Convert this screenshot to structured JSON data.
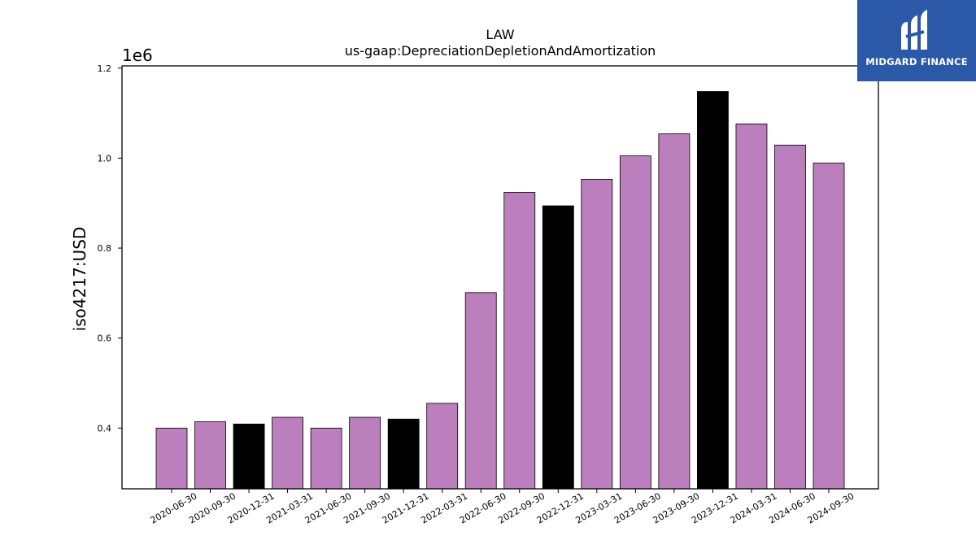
{
  "chart_data": {
    "type": "bar",
    "title": "LAW",
    "subtitle": "us-gaap:DepreciationDepletionAndAmortization",
    "ylabel": "iso4217:USD",
    "xlabel": "",
    "y_offset_label": "1e6",
    "ylim": [
      0.265,
      1.205
    ],
    "yticks": [
      0.4,
      0.6,
      0.8,
      1.0,
      1.2
    ],
    "ytick_labels": [
      "0.4",
      "0.6",
      "0.8",
      "1.0",
      "1.2"
    ],
    "categories": [
      "2020-06-30",
      "2020-09-30",
      "2020-12-31",
      "2021-03-31",
      "2021-06-30",
      "2021-09-30",
      "2021-12-31",
      "2022-03-31",
      "2022-06-30",
      "2022-09-30",
      "2022-12-31",
      "2023-03-31",
      "2023-06-30",
      "2023-09-30",
      "2023-12-31",
      "2024-03-31",
      "2024-06-30",
      "2024-09-30"
    ],
    "values": [
      0.4,
      0.414,
      0.409,
      0.424,
      0.4,
      0.424,
      0.42,
      0.455,
      0.701,
      0.924,
      0.894,
      0.953,
      1.005,
      1.054,
      1.148,
      1.076,
      1.029,
      0.989
    ],
    "bar_colors": [
      "#bb7fbd",
      "#bb7fbd",
      "#000000",
      "#bb7fbd",
      "#bb7fbd",
      "#bb7fbd",
      "#000000",
      "#bb7fbd",
      "#bb7fbd",
      "#bb7fbd",
      "#000000",
      "#bb7fbd",
      "#bb7fbd",
      "#bb7fbd",
      "#000000",
      "#bb7fbd",
      "#bb7fbd",
      "#bb7fbd"
    ],
    "grid": false,
    "legend": "none"
  },
  "logo": {
    "text": "MIDGARD FINANCE",
    "background": "#2b59a8"
  }
}
